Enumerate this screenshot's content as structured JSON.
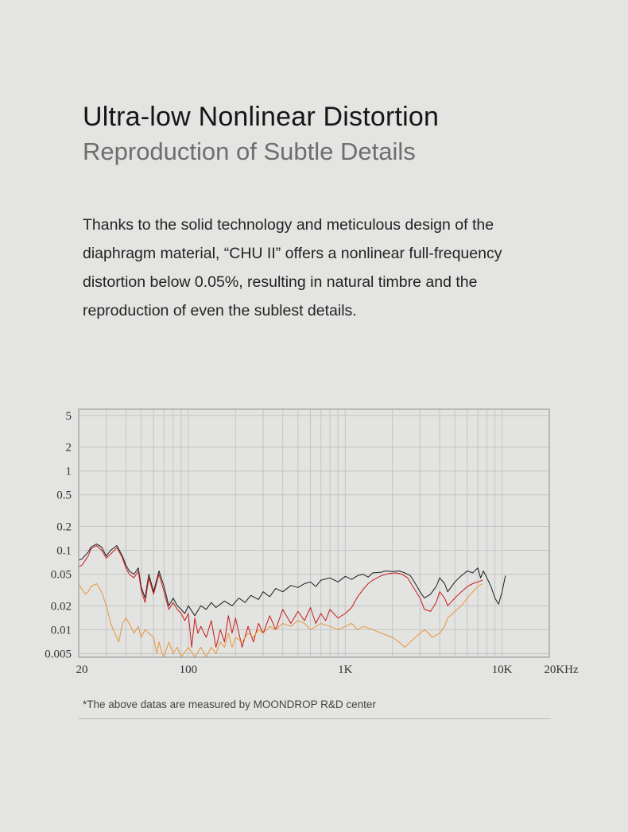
{
  "header": {
    "title": "Ultra-low Nonlinear Distortion",
    "subtitle": "Reproduction of Subtle Details"
  },
  "description": "Thanks to the solid technology and meticulous design of the diaphragm material, “CHU II” offers a nonlinear full-frequency distortion below 0.05%, resulting in natural timbre and the reproduction of even the sublest details.",
  "footnote": "*The above datas are measured by MOONDROP R&D center",
  "chart_data": {
    "type": "line",
    "x_scale": "log",
    "y_scale": "log",
    "xlim": [
      20,
      20000
    ],
    "ylim": [
      0.0045,
      6
    ],
    "grid": true,
    "x_ticks": [
      {
        "value": 20,
        "label": "20"
      },
      {
        "value": 100,
        "label": "100"
      },
      {
        "value": 1000,
        "label": "1K"
      },
      {
        "value": 10000,
        "label": "10K"
      },
      {
        "value": 20000,
        "label": "20KHz"
      }
    ],
    "y_ticks": [
      {
        "value": 5,
        "label": "5"
      },
      {
        "value": 2,
        "label": "2"
      },
      {
        "value": 1,
        "label": "1"
      },
      {
        "value": 0.5,
        "label": "0.5"
      },
      {
        "value": 0.2,
        "label": "0.2"
      },
      {
        "value": 0.1,
        "label": "0.1"
      },
      {
        "value": 0.05,
        "label": "0.05"
      },
      {
        "value": 0.02,
        "label": "0.02"
      },
      {
        "value": 0.01,
        "label": "0.01"
      },
      {
        "value": 0.005,
        "label": "0.005"
      }
    ],
    "colors": {
      "frame": "#a9a9a9",
      "grid": "#c4c4c4",
      "plot_bg": "#e3e3e1"
    },
    "series": [
      {
        "color": "#1c1c1c",
        "x": [
          20,
          21,
          23,
          24,
          26,
          28,
          30,
          32,
          35,
          38,
          40,
          42,
          45,
          48,
          50,
          53,
          56,
          60,
          65,
          70,
          75,
          80,
          85,
          90,
          95,
          100,
          110,
          120,
          130,
          140,
          150,
          170,
          190,
          210,
          230,
          250,
          280,
          300,
          330,
          360,
          400,
          450,
          500,
          550,
          600,
          650,
          700,
          800,
          900,
          1000,
          1100,
          1200,
          1300,
          1400,
          1500,
          1700,
          1800,
          2000,
          2200,
          2400,
          2600,
          2800,
          3000,
          3200,
          3500,
          3800,
          4000,
          4300,
          4500,
          5000,
          5500,
          6000,
          6500,
          7000,
          7300,
          7600,
          8000,
          8500,
          9000,
          9500,
          10000,
          10500
        ],
        "y": [
          0.075,
          0.078,
          0.095,
          0.11,
          0.12,
          0.11,
          0.085,
          0.1,
          0.115,
          0.085,
          0.065,
          0.055,
          0.05,
          0.06,
          0.035,
          0.025,
          0.05,
          0.03,
          0.055,
          0.035,
          0.02,
          0.025,
          0.02,
          0.018,
          0.016,
          0.02,
          0.015,
          0.02,
          0.018,
          0.022,
          0.019,
          0.023,
          0.02,
          0.025,
          0.022,
          0.027,
          0.024,
          0.03,
          0.026,
          0.033,
          0.03,
          0.036,
          0.034,
          0.038,
          0.04,
          0.035,
          0.042,
          0.045,
          0.04,
          0.047,
          0.043,
          0.048,
          0.05,
          0.046,
          0.052,
          0.053,
          0.055,
          0.054,
          0.055,
          0.052,
          0.048,
          0.038,
          0.03,
          0.025,
          0.028,
          0.035,
          0.045,
          0.038,
          0.03,
          0.04,
          0.048,
          0.055,
          0.052,
          0.06,
          0.045,
          0.055,
          0.045,
          0.035,
          0.025,
          0.021,
          0.03,
          0.048
        ]
      },
      {
        "color": "#c71a1a",
        "x": [
          20,
          21,
          23,
          24,
          26,
          28,
          30,
          32,
          35,
          38,
          40,
          42,
          45,
          48,
          50,
          53,
          56,
          60,
          65,
          70,
          75,
          80,
          85,
          90,
          95,
          100,
          105,
          110,
          115,
          120,
          130,
          140,
          150,
          160,
          170,
          180,
          190,
          200,
          220,
          240,
          260,
          280,
          300,
          330,
          360,
          400,
          450,
          500,
          550,
          600,
          650,
          700,
          750,
          800,
          900,
          1000,
          1100,
          1200,
          1300,
          1400,
          1500,
          1700,
          1900,
          2100,
          2300,
          2500,
          2700,
          3000,
          3200,
          3500,
          3800,
          4000,
          4300,
          4500,
          5000,
          5500,
          6000,
          6500,
          7000,
          7500
        ],
        "y": [
          0.062,
          0.065,
          0.085,
          0.105,
          0.115,
          0.1,
          0.08,
          0.09,
          0.108,
          0.08,
          0.06,
          0.05,
          0.045,
          0.055,
          0.032,
          0.022,
          0.045,
          0.028,
          0.05,
          0.03,
          0.018,
          0.022,
          0.018,
          0.016,
          0.013,
          0.016,
          0.006,
          0.014,
          0.009,
          0.011,
          0.008,
          0.013,
          0.006,
          0.01,
          0.007,
          0.015,
          0.009,
          0.014,
          0.006,
          0.011,
          0.007,
          0.012,
          0.009,
          0.015,
          0.01,
          0.018,
          0.012,
          0.017,
          0.013,
          0.019,
          0.012,
          0.016,
          0.013,
          0.018,
          0.014,
          0.016,
          0.019,
          0.026,
          0.032,
          0.038,
          0.042,
          0.048,
          0.051,
          0.052,
          0.05,
          0.045,
          0.035,
          0.025,
          0.018,
          0.017,
          0.022,
          0.03,
          0.025,
          0.02,
          0.025,
          0.03,
          0.035,
          0.038,
          0.04,
          0.042
        ]
      },
      {
        "color": "#e8953a",
        "x": [
          20,
          21,
          22,
          23,
          24,
          26,
          28,
          30,
          32,
          34,
          36,
          38,
          40,
          42,
          45,
          48,
          50,
          53,
          56,
          60,
          63,
          65,
          68,
          70,
          75,
          80,
          85,
          90,
          100,
          110,
          120,
          130,
          140,
          150,
          160,
          170,
          180,
          190,
          200,
          220,
          240,
          260,
          280,
          300,
          330,
          360,
          400,
          450,
          500,
          550,
          600,
          700,
          800,
          900,
          1000,
          1100,
          1200,
          1300,
          1500,
          1700,
          2000,
          2200,
          2400,
          2600,
          3000,
          3200,
          3400,
          3600,
          4000,
          4300,
          4500,
          5000,
          5500,
          6000,
          6500,
          7000,
          7500
        ],
        "y": [
          0.038,
          0.032,
          0.028,
          0.03,
          0.035,
          0.038,
          0.03,
          0.02,
          0.012,
          0.009,
          0.007,
          0.012,
          0.014,
          0.012,
          0.009,
          0.011,
          0.008,
          0.01,
          0.009,
          0.008,
          0.005,
          0.007,
          0.005,
          0.004,
          0.007,
          0.005,
          0.006,
          0.004,
          0.006,
          0.004,
          0.006,
          0.004,
          0.006,
          0.005,
          0.007,
          0.006,
          0.009,
          0.006,
          0.008,
          0.007,
          0.009,
          0.008,
          0.01,
          0.009,
          0.011,
          0.01,
          0.012,
          0.011,
          0.013,
          0.012,
          0.01,
          0.012,
          0.011,
          0.01,
          0.011,
          0.012,
          0.01,
          0.011,
          0.01,
          0.009,
          0.008,
          0.007,
          0.006,
          0.007,
          0.009,
          0.01,
          0.009,
          0.008,
          0.009,
          0.011,
          0.014,
          0.017,
          0.02,
          0.025,
          0.03,
          0.035,
          0.038
        ]
      }
    ]
  }
}
